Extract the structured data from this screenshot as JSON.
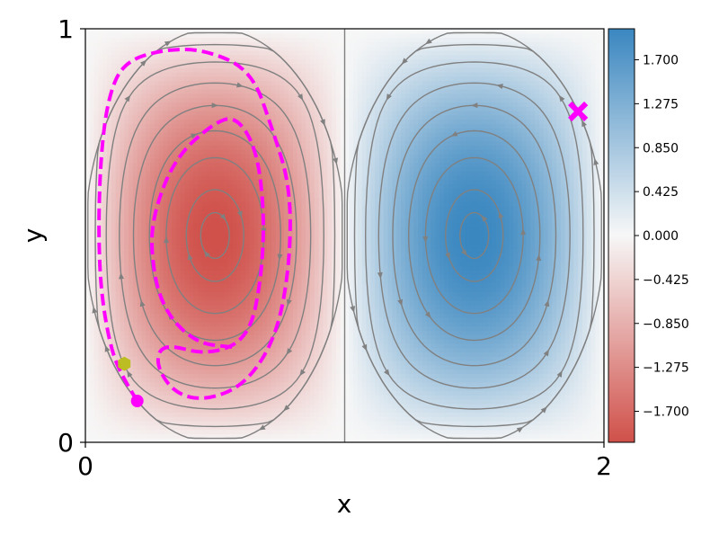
{
  "chart_data": {
    "type": "heatmap",
    "title": "",
    "xlabel": "x",
    "ylabel": "y",
    "xlim": [
      0,
      2
    ],
    "ylim": [
      0,
      1
    ],
    "x_ticks": [
      "0",
      "2"
    ],
    "y_ticks": [
      "0",
      "1"
    ],
    "field": {
      "vortex_centers": [
        {
          "x": 0.5,
          "y": 0.5,
          "value": -2.0
        },
        {
          "x": 1.5,
          "y": 0.5,
          "value": 2.0
        }
      ],
      "range": [
        -2.0,
        2.0
      ]
    },
    "colorbar": {
      "ticks": [
        "1.700",
        "1.275",
        "0.850",
        "0.425",
        "0.000",
        "−0.425",
        "−0.850",
        "−1.275",
        "−1.700"
      ],
      "tick_values": [
        1.7,
        1.275,
        0.85,
        0.425,
        0.0,
        -0.425,
        -0.85,
        -1.275,
        -1.7
      ],
      "min": -2.0,
      "max": 2.0,
      "low_color": "#d0504a",
      "mid_color": "#f7f7f7",
      "high_color": "#3a87c0"
    },
    "streamline_color": "#808080",
    "trajectory": {
      "color": "#ff00ff",
      "style": "dashed",
      "points": [
        [
          0.2,
          0.1
        ],
        [
          0.15,
          0.15
        ],
        [
          0.1,
          0.22
        ],
        [
          0.06,
          0.36
        ],
        [
          0.05,
          0.52
        ],
        [
          0.06,
          0.7
        ],
        [
          0.09,
          0.84
        ],
        [
          0.15,
          0.92
        ],
        [
          0.3,
          0.95
        ],
        [
          0.46,
          0.95
        ],
        [
          0.64,
          0.9
        ],
        [
          0.72,
          0.76
        ],
        [
          0.79,
          0.62
        ],
        [
          0.79,
          0.44
        ],
        [
          0.74,
          0.26
        ],
        [
          0.62,
          0.14
        ],
        [
          0.46,
          0.1
        ],
        [
          0.34,
          0.12
        ],
        [
          0.27,
          0.19
        ],
        [
          0.3,
          0.24
        ],
        [
          0.47,
          0.21
        ],
        [
          0.63,
          0.25
        ],
        [
          0.68,
          0.4
        ],
        [
          0.69,
          0.56
        ],
        [
          0.66,
          0.71
        ],
        [
          0.58,
          0.79
        ],
        [
          0.49,
          0.77
        ],
        [
          0.35,
          0.69
        ],
        [
          0.27,
          0.57
        ],
        [
          0.25,
          0.47
        ],
        [
          0.29,
          0.33
        ],
        [
          0.42,
          0.24
        ],
        [
          0.57,
          0.23
        ]
      ]
    },
    "markers": [
      {
        "name": "start",
        "shape": "circle",
        "color": "#ff00ff",
        "x": 0.2,
        "y": 0.1
      },
      {
        "name": "initial",
        "shape": "hexagon",
        "color": "#bcbd22",
        "x": 0.15,
        "y": 0.19
      },
      {
        "name": "target",
        "shape": "x",
        "color": "#ff00ff",
        "x": 1.9,
        "y": 0.8
      }
    ]
  }
}
